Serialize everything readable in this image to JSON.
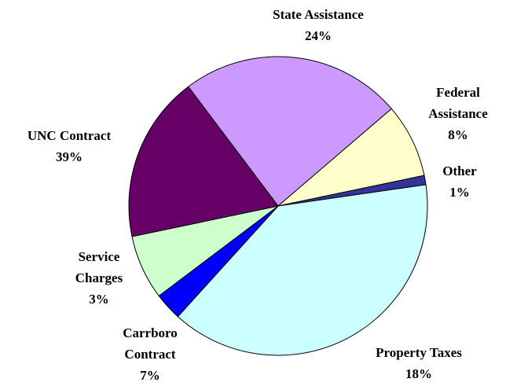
{
  "chart_data": {
    "type": "pie",
    "categories": [
      "State Assistance",
      "Federal Assistance",
      "Other",
      "UNC Contract",
      "Service Charges",
      "Carrboro Contract",
      "Property Taxes"
    ],
    "values": [
      24,
      8,
      1,
      39,
      3,
      7,
      18
    ],
    "value_labels": [
      "24%",
      "8%",
      "1%",
      "39%",
      "3%",
      "7%",
      "18%"
    ],
    "colors": [
      "#cc99ff",
      "#ffffcc",
      "#333399",
      "#ccffff",
      "#0000ff",
      "#ccffcc",
      "#660066"
    ]
  }
}
